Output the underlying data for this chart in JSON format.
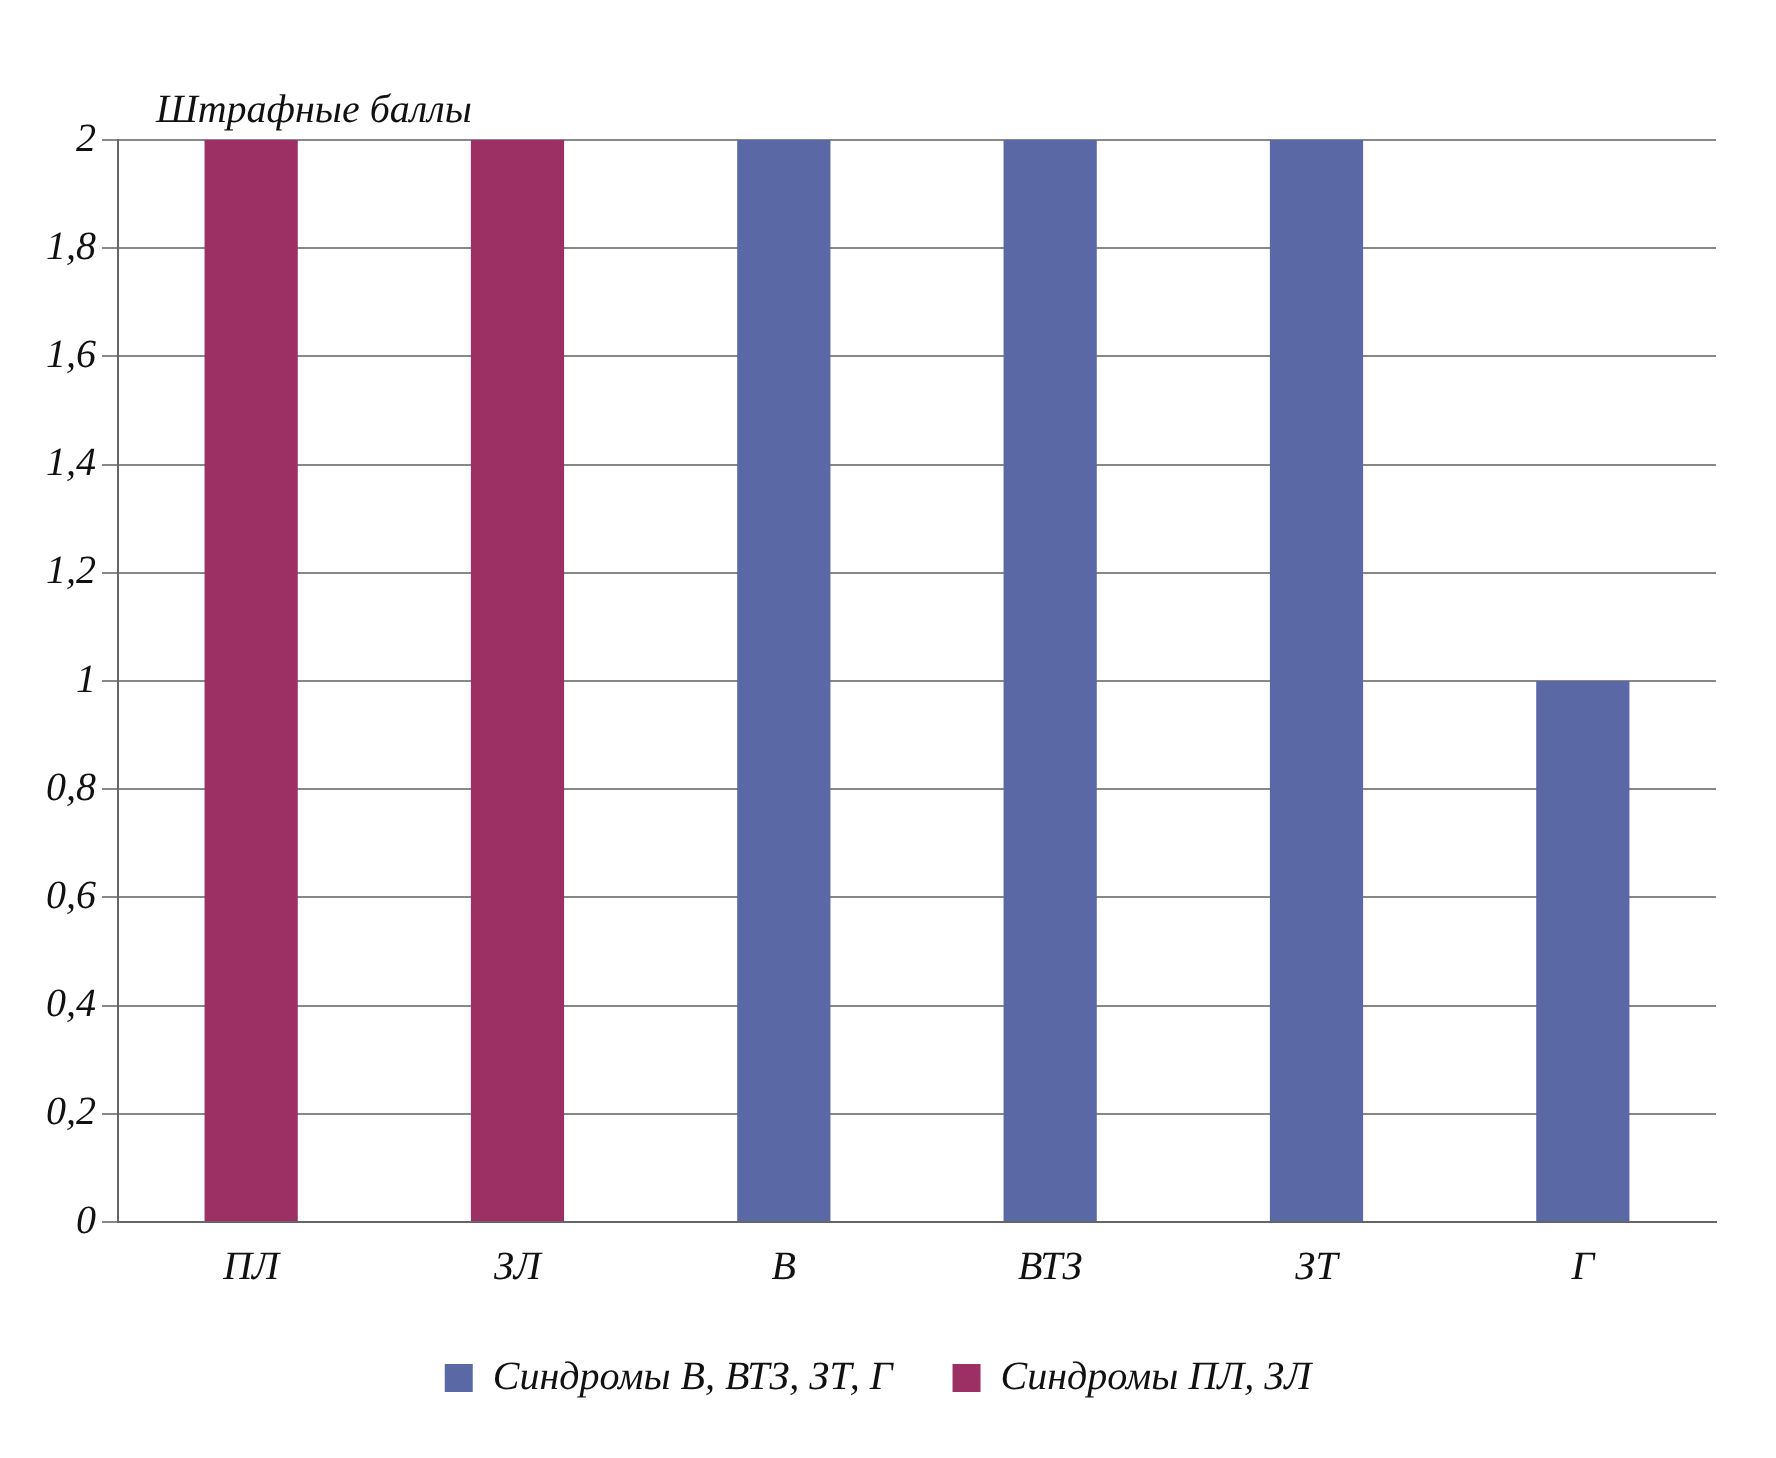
{
  "chart_data": {
    "type": "bar",
    "ylabel": "Штрафные баллы",
    "categories": [
      "ПЛ",
      "ЗЛ",
      "В",
      "ВТЗ",
      "ЗТ",
      "Г"
    ],
    "series": [
      {
        "name": "Синдромы В, ВТЗ, ЗТ, Г",
        "color": "#5a68a6",
        "values": [
          null,
          null,
          2,
          2,
          2,
          1
        ]
      },
      {
        "name": "Синдромы ПЛ, ЗЛ",
        "color": "#9c3064",
        "values": [
          2,
          2,
          null,
          null,
          null,
          null
        ]
      }
    ],
    "ylim": [
      0,
      2
    ],
    "yticks": [
      0,
      {
        "value": 0.2,
        "label": "0,2"
      },
      {
        "value": 0.4,
        "label": "0,4"
      },
      {
        "value": 0.6,
        "label": "0,6"
      },
      {
        "value": 0.8,
        "label": "0,8"
      },
      1,
      {
        "value": 1.2,
        "label": "1,2"
      },
      {
        "value": 1.4,
        "label": "1,4"
      },
      {
        "value": 1.6,
        "label": "1,6"
      },
      {
        "value": 1.8,
        "label": "1,8"
      },
      2
    ],
    "grid": "y",
    "legend": "bottom"
  }
}
